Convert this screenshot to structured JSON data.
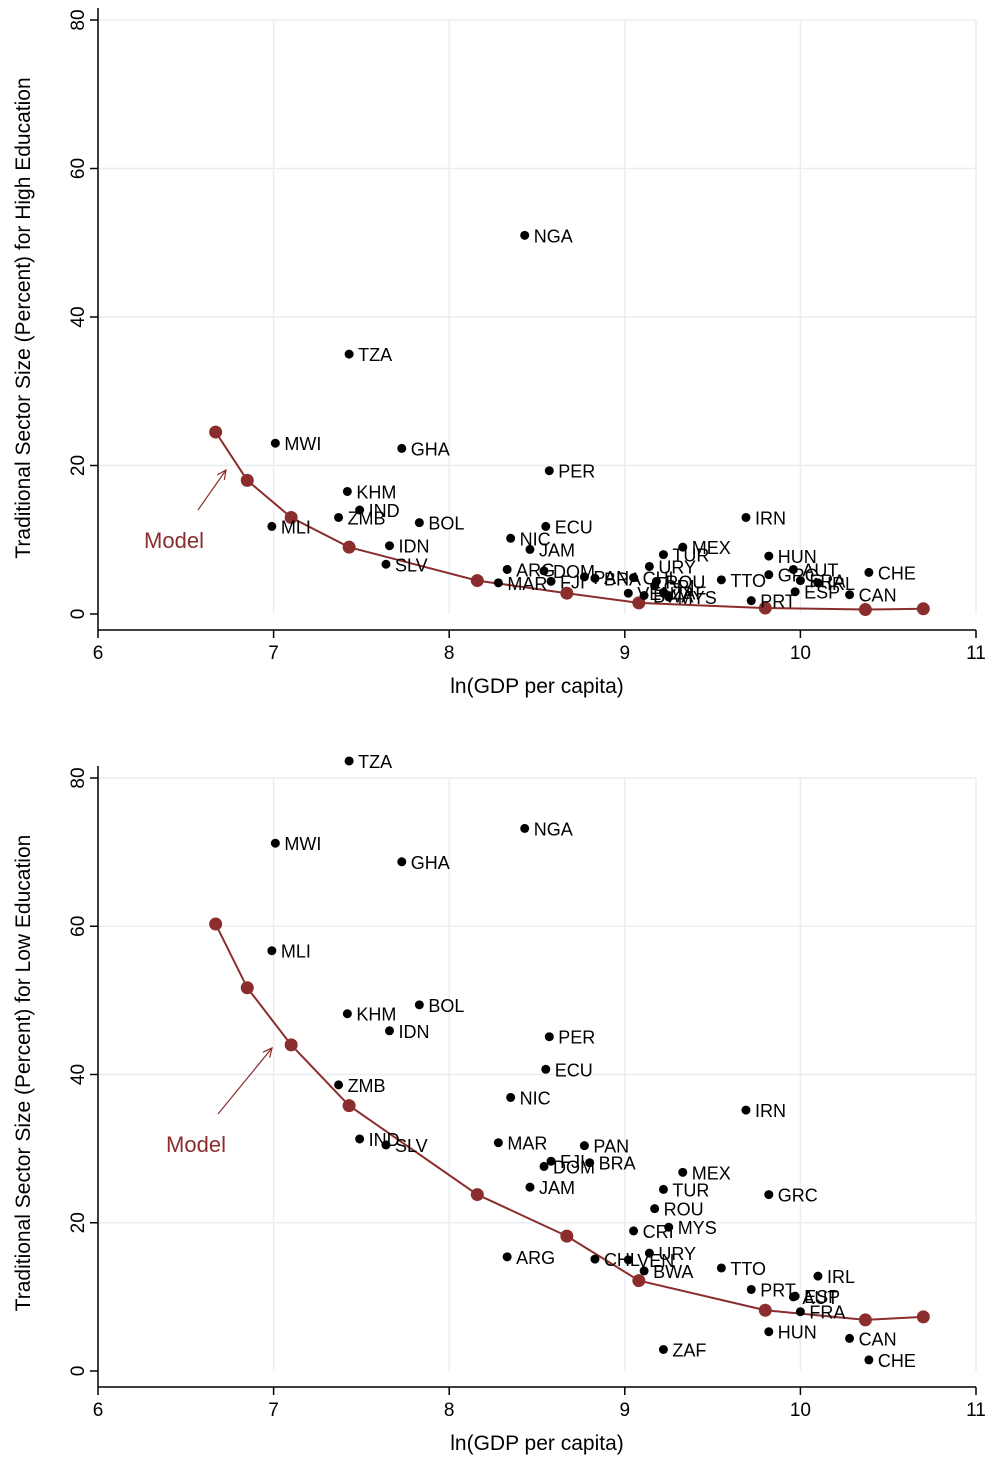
{
  "colors": {
    "model": "#8b2d2d",
    "points": "#000000",
    "grid": "#e8eef2"
  },
  "chart_data": [
    {
      "type": "scatter",
      "xlabel": "ln(GDP per capita)",
      "ylabel": "Traditional Sector Size (Percent) for High Education",
      "xlim": [
        6,
        11
      ],
      "ylim": [
        0,
        80
      ],
      "xticks": [
        6,
        7,
        8,
        9,
        10,
        11
      ],
      "yticks": [
        0,
        20,
        40,
        60,
        80
      ],
      "model_label": "Model",
      "model": {
        "x": [
          6.67,
          6.85,
          7.1,
          7.43,
          8.16,
          8.67,
          9.08,
          9.8,
          10.37,
          10.7
        ],
        "y": [
          24.5,
          18,
          13,
          9,
          4.5,
          2.8,
          1.5,
          0.8,
          0.6,
          0.7
        ]
      },
      "points": [
        {
          "label": "NGA",
          "x": 8.43,
          "y": 51
        },
        {
          "label": "TZA",
          "x": 7.43,
          "y": 35
        },
        {
          "label": "MWI",
          "x": 7.01,
          "y": 23
        },
        {
          "label": "GHA",
          "x": 7.73,
          "y": 22.3
        },
        {
          "label": "PER",
          "x": 8.57,
          "y": 19.3
        },
        {
          "label": "KHM",
          "x": 7.42,
          "y": 16.5
        },
        {
          "label": "IND",
          "x": 7.49,
          "y": 14
        },
        {
          "label": "ZMB",
          "x": 7.37,
          "y": 13
        },
        {
          "label": "IRN",
          "x": 9.69,
          "y": 13
        },
        {
          "label": "BOL",
          "x": 7.83,
          "y": 12.3
        },
        {
          "label": "MLI",
          "x": 6.99,
          "y": 11.8
        },
        {
          "label": "ECU",
          "x": 8.55,
          "y": 11.8
        },
        {
          "label": "NIC",
          "x": 8.35,
          "y": 10.2
        },
        {
          "label": "IDN",
          "x": 7.66,
          "y": 9.2
        },
        {
          "label": "MEX",
          "x": 9.33,
          "y": 9
        },
        {
          "label": "JAM",
          "x": 8.46,
          "y": 8.7
        },
        {
          "label": "TUR",
          "x": 9.22,
          "y": 8
        },
        {
          "label": "HUN",
          "x": 9.82,
          "y": 7.8
        },
        {
          "label": "SLV",
          "x": 7.64,
          "y": 6.7
        },
        {
          "label": "URY",
          "x": 9.14,
          "y": 6.4
        },
        {
          "label": "ARG",
          "x": 8.33,
          "y": 6
        },
        {
          "label": "DOM",
          "x": 8.54,
          "y": 5.8
        },
        {
          "label": "GRC",
          "x": 9.82,
          "y": 5.3
        },
        {
          "label": "AUT",
          "x": 9.96,
          "y": 6
        },
        {
          "label": "CHE",
          "x": 10.39,
          "y": 5.6
        },
        {
          "label": "PAN",
          "x": 8.77,
          "y": 5
        },
        {
          "label": "BRA",
          "x": 8.83,
          "y": 4.8
        },
        {
          "label": "CHL",
          "x": 9.05,
          "y": 4.9
        },
        {
          "label": "ROU",
          "x": 9.18,
          "y": 4.4
        },
        {
          "label": "TTO",
          "x": 9.55,
          "y": 4.6
        },
        {
          "label": "IRL",
          "x": 10.1,
          "y": 4.2
        },
        {
          "label": "FRA",
          "x": 10.0,
          "y": 4.5
        },
        {
          "label": "FJI",
          "x": 8.58,
          "y": 4.4
        },
        {
          "label": "MAR",
          "x": 8.28,
          "y": 4.2
        },
        {
          "label": "CRI",
          "x": 9.17,
          "y": 3.8
        },
        {
          "label": "ESP",
          "x": 9.97,
          "y": 3
        },
        {
          "label": "VEN",
          "x": 9.02,
          "y": 2.8
        },
        {
          "label": "ZAF",
          "x": 9.22,
          "y": 2.9
        },
        {
          "label": "BWA",
          "x": 9.11,
          "y": 2.5
        },
        {
          "label": "MYS",
          "x": 9.25,
          "y": 2.3
        },
        {
          "label": "CAN",
          "x": 10.28,
          "y": 2.6
        },
        {
          "label": "PRT",
          "x": 9.72,
          "y": 1.8
        }
      ]
    },
    {
      "type": "scatter",
      "xlabel": "ln(GDP per capita)",
      "ylabel": "Traditional Sector Size (Percent) for Low Education",
      "xlim": [
        6,
        11
      ],
      "ylim": [
        0,
        80
      ],
      "xticks": [
        6,
        7,
        8,
        9,
        10,
        11
      ],
      "yticks": [
        0,
        20,
        40,
        60,
        80
      ],
      "model_label": "Model",
      "model": {
        "x": [
          6.67,
          6.85,
          7.1,
          7.43,
          8.16,
          8.67,
          9.08,
          9.8,
          10.37,
          10.7
        ],
        "y": [
          60.3,
          51.7,
          44,
          35.8,
          23.8,
          18.2,
          12.2,
          8.2,
          6.9,
          7.3
        ]
      },
      "points": [
        {
          "label": "TZA",
          "x": 7.43,
          "y": 82.3
        },
        {
          "label": "NGA",
          "x": 8.43,
          "y": 73.2
        },
        {
          "label": "MWI",
          "x": 7.01,
          "y": 71.2
        },
        {
          "label": "GHA",
          "x": 7.73,
          "y": 68.7
        },
        {
          "label": "MLI",
          "x": 6.99,
          "y": 56.7
        },
        {
          "label": "BOL",
          "x": 7.83,
          "y": 49.4
        },
        {
          "label": "KHM",
          "x": 7.42,
          "y": 48.2
        },
        {
          "label": "IDN",
          "x": 7.66,
          "y": 45.9
        },
        {
          "label": "PER",
          "x": 8.57,
          "y": 45.1
        },
        {
          "label": "ECU",
          "x": 8.55,
          "y": 40.7
        },
        {
          "label": "ZMB",
          "x": 7.37,
          "y": 38.6
        },
        {
          "label": "NIC",
          "x": 8.35,
          "y": 36.9
        },
        {
          "label": "IRN",
          "x": 9.69,
          "y": 35.2
        },
        {
          "label": "IND",
          "x": 7.49,
          "y": 31.3
        },
        {
          "label": "SLV",
          "x": 7.64,
          "y": 30.5
        },
        {
          "label": "MAR",
          "x": 8.28,
          "y": 30.8
        },
        {
          "label": "PAN",
          "x": 8.77,
          "y": 30.4
        },
        {
          "label": "FJI",
          "x": 8.58,
          "y": 28.3
        },
        {
          "label": "BRA",
          "x": 8.8,
          "y": 28.1
        },
        {
          "label": "DOM",
          "x": 8.54,
          "y": 27.6
        },
        {
          "label": "MEX",
          "x": 9.33,
          "y": 26.8
        },
        {
          "label": "JAM",
          "x": 8.46,
          "y": 24.8
        },
        {
          "label": "TUR",
          "x": 9.22,
          "y": 24.5
        },
        {
          "label": "GRC",
          "x": 9.82,
          "y": 23.8
        },
        {
          "label": "ROU",
          "x": 9.17,
          "y": 21.9
        },
        {
          "label": "MYS",
          "x": 9.25,
          "y": 19.4
        },
        {
          "label": "CRI",
          "x": 9.05,
          "y": 18.9
        },
        {
          "label": "URY",
          "x": 9.14,
          "y": 15.9
        },
        {
          "label": "ARG",
          "x": 8.33,
          "y": 15.4
        },
        {
          "label": "CHL",
          "x": 8.83,
          "y": 15.1
        },
        {
          "label": "VEN",
          "x": 9.02,
          "y": 15
        },
        {
          "label": "TTO",
          "x": 9.55,
          "y": 13.9
        },
        {
          "label": "BWA",
          "x": 9.11,
          "y": 13.5
        },
        {
          "label": "IRL",
          "x": 10.1,
          "y": 12.8
        },
        {
          "label": "PRT",
          "x": 9.72,
          "y": 11
        },
        {
          "label": "AUT",
          "x": 9.96,
          "y": 10
        },
        {
          "label": "ESP",
          "x": 9.97,
          "y": 10.1
        },
        {
          "label": "FRA",
          "x": 10.0,
          "y": 8
        },
        {
          "label": "HUN",
          "x": 9.82,
          "y": 5.3
        },
        {
          "label": "CAN",
          "x": 10.28,
          "y": 4.4
        },
        {
          "label": "ZAF",
          "x": 9.22,
          "y": 2.9
        },
        {
          "label": "CHE",
          "x": 10.39,
          "y": 1.5
        }
      ]
    }
  ]
}
